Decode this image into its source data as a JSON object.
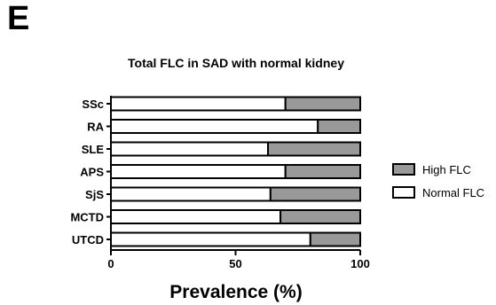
{
  "panel_label": "E",
  "chart_data": {
    "type": "bar",
    "orientation": "horizontal",
    "stacked": true,
    "title": "Total FLC in SAD with normal kidney",
    "xlabel": "Prevalence (%)",
    "ylabel": "",
    "xlim": [
      0,
      100
    ],
    "xticks": [
      "0",
      "50",
      "100"
    ],
    "categories": [
      "SSc",
      "RA",
      "SLE",
      "APS",
      "SjS",
      "MCTD",
      "UTCD"
    ],
    "series": [
      {
        "name": "Normal FLC",
        "color": "#ffffff",
        "values": [
          70,
          83,
          63,
          70,
          64,
          68,
          80
        ]
      },
      {
        "name": "High FLC",
        "color": "#999999",
        "values": [
          30,
          17,
          37,
          30,
          36,
          32,
          20
        ]
      }
    ],
    "legend": {
      "placement": "right",
      "order": [
        "High FLC",
        "Normal FLC"
      ]
    },
    "grid": false
  }
}
